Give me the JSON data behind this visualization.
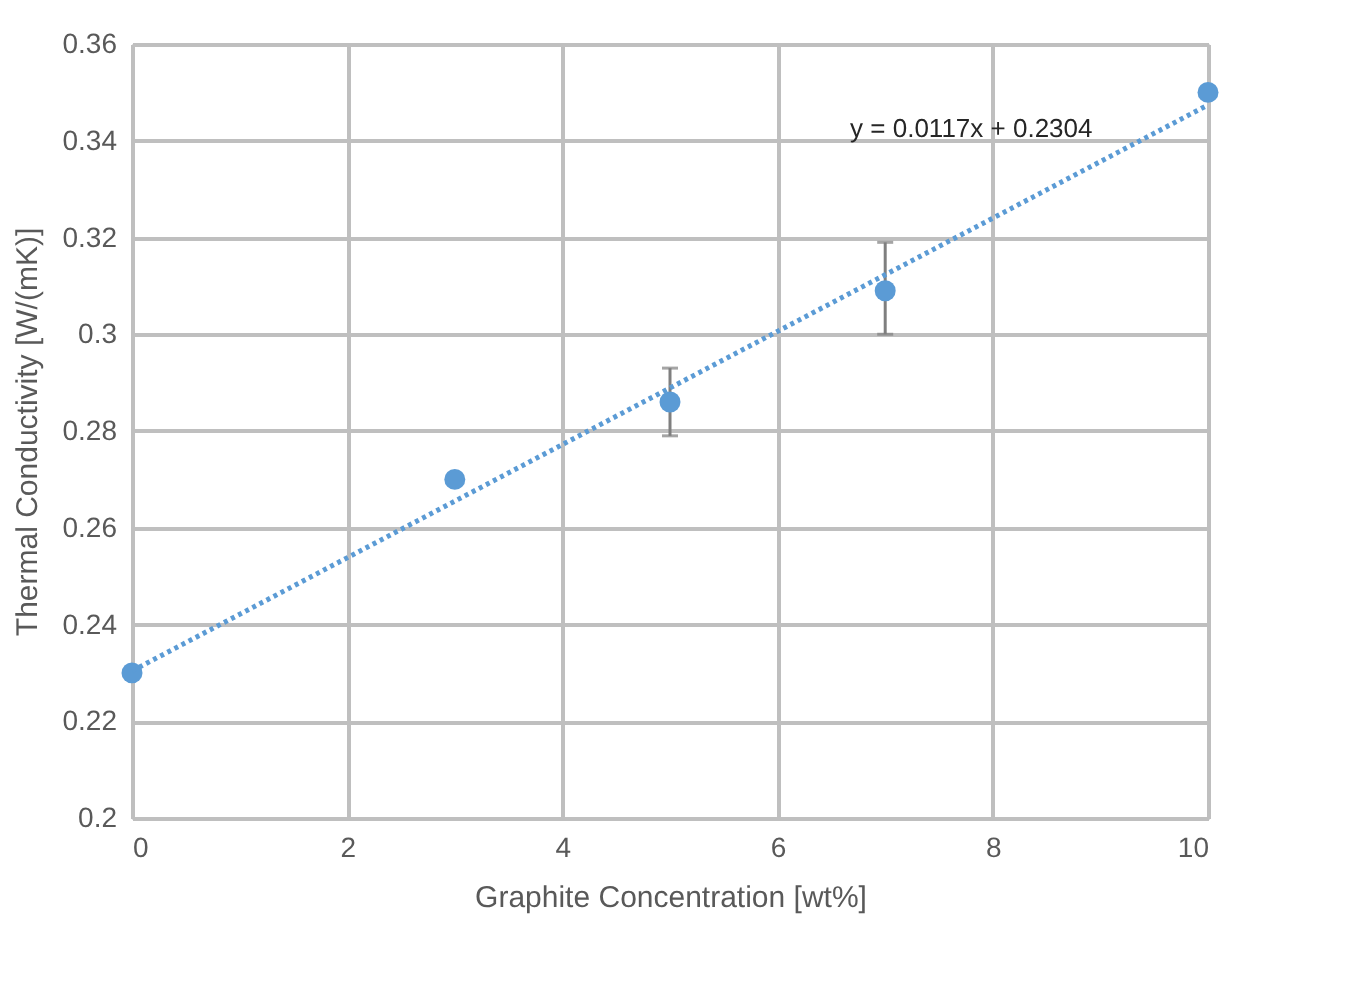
{
  "chart_data": {
    "type": "scatter",
    "xlabel": "Graphite Concentration [wt%]",
    "ylabel": "Thermal Conductivity  [W/(mK)]",
    "xlim": [
      0,
      10
    ],
    "xticks": [
      0,
      2,
      4,
      6,
      8,
      10
    ],
    "ylim": [
      0.2,
      0.36
    ],
    "yticks": [
      0.2,
      0.22,
      0.24,
      0.26,
      0.28,
      0.3,
      0.32,
      0.34,
      0.36
    ],
    "grid": true,
    "series": [
      {
        "marker": "circle",
        "color": "#5b9bd5",
        "x": [
          0,
          3,
          5,
          7,
          10
        ],
        "values": [
          0.23,
          0.27,
          0.286,
          0.309,
          0.35
        ],
        "errors": [
          null,
          null,
          [
            0.279,
            0.293
          ],
          [
            0.3,
            0.319
          ],
          null
        ]
      },
      {
        "type": "line",
        "color": "#5b9bd5",
        "line_style": "dotted",
        "x": [
          0,
          10
        ],
        "values": [
          0.2304,
          0.3474
        ]
      }
    ],
    "annotations": [
      "y = 0.0117x + 0.2304"
    ]
  }
}
